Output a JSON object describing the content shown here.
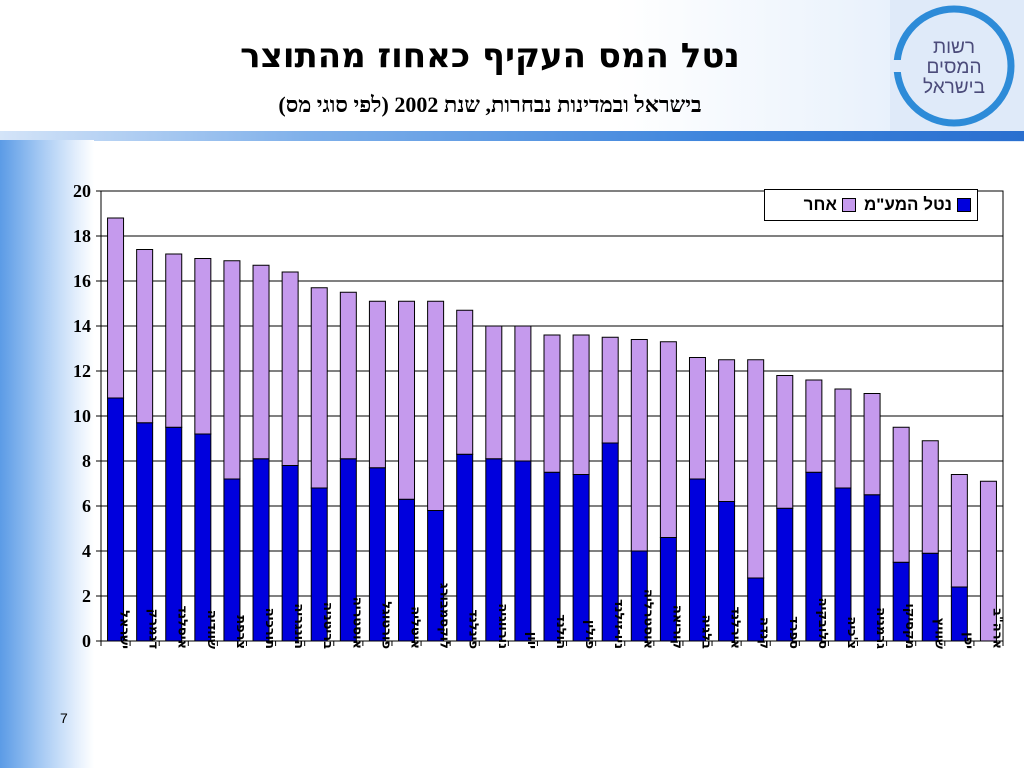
{
  "slide": {
    "title": "נטל המס העקיף כאחוז מהתוצר",
    "subtitle": "בישראל ובמדינות נבחרות, שנת 2002 (לפי סוגי מס)",
    "page_number": "7"
  },
  "logo": {
    "lines": [
      "רשות",
      "המסים",
      "בישראל"
    ],
    "ring_color": "#2d8bd8"
  },
  "legend": {
    "position": "top-right",
    "items": [
      {
        "label": "אחר",
        "color": "#c59aed"
      },
      {
        "label": "נטל המע\"מ",
        "color": "#0000dd"
      }
    ]
  },
  "chart_data": {
    "type": "bar",
    "stacked": true,
    "ylim": [
      0,
      20
    ],
    "yticks": [
      0,
      2,
      4,
      6,
      8,
      10,
      12,
      14,
      16,
      18,
      20
    ],
    "grid": true,
    "categories": [
      "ישראל",
      "דנמרק",
      "איסלנד",
      "שוודיה",
      "צרפת",
      "תורכיה",
      "הונגריה",
      "בריטניה",
      "אוסטריה",
      "פורטוגל",
      "איטליה",
      "לוקסמבורג",
      "פינלנד",
      "נורווגיה",
      "יוון",
      "הולנד",
      "פולין",
      "ניו-זילנד",
      "אוסטרליה",
      "קוריאה",
      "בלגיה",
      "אירלנד",
      "קנדה",
      "ספרד",
      "סלובקיה",
      "צ'כיה",
      "גרמניה",
      "מקסיקו",
      "שוויץ",
      "יפן",
      "ארה\"ב"
    ],
    "totals": [
      18.8,
      17.4,
      17.2,
      17.0,
      16.9,
      16.7,
      16.4,
      15.7,
      15.5,
      15.1,
      15.1,
      15.1,
      14.7,
      14.0,
      14.0,
      13.6,
      13.6,
      13.5,
      13.4,
      13.3,
      12.6,
      12.5,
      12.5,
      11.8,
      11.6,
      11.2,
      11.0,
      9.5,
      8.9,
      7.4,
      7.1
    ],
    "series": [
      {
        "name": "נטל המע\"מ",
        "color": "#0000dd",
        "values": [
          10.8,
          9.7,
          9.5,
          9.2,
          7.2,
          8.1,
          7.8,
          6.8,
          8.1,
          7.7,
          6.3,
          5.8,
          8.3,
          8.1,
          8.0,
          7.5,
          7.4,
          8.8,
          4.0,
          4.6,
          7.2,
          6.2,
          2.8,
          5.9,
          7.5,
          6.8,
          6.5,
          3.5,
          3.9,
          2.4,
          0.0
        ]
      },
      {
        "name": "אחר",
        "color": "#c59aed",
        "values": [
          8.0,
          7.7,
          7.7,
          7.8,
          9.7,
          8.6,
          8.6,
          8.9,
          7.4,
          7.4,
          8.8,
          9.3,
          6.4,
          5.9,
          6.0,
          6.1,
          6.2,
          4.7,
          9.4,
          8.7,
          5.4,
          6.3,
          9.7,
          5.9,
          4.1,
          4.4,
          4.5,
          6.0,
          5.0,
          5.0,
          7.1
        ]
      }
    ]
  }
}
